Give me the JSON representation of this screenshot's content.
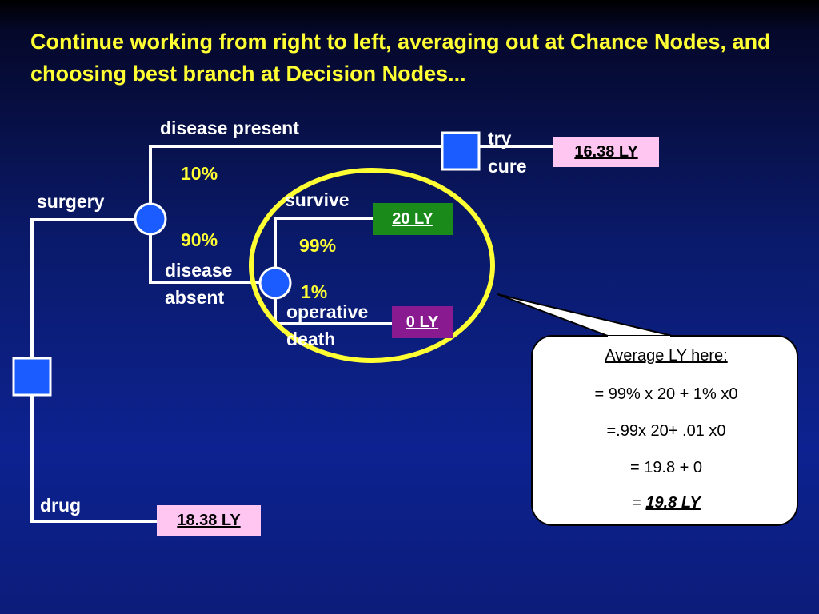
{
  "title": "Continue working from right to left, averaging out at Chance Nodes, and choosing best branch at Decision Nodes...",
  "labels": {
    "disease_present": "disease present",
    "surgery": "surgery",
    "disease": "disease",
    "absent": "absent",
    "survive": "survive",
    "operative": "operative",
    "death": "death",
    "try": "try",
    "cure": "cure",
    "drug": "drug"
  },
  "probabilities": {
    "disease_present": "10%",
    "disease_absent": "90%",
    "survive": "99%",
    "operative_death": "1%"
  },
  "outcomes": {
    "try_cure": "16.38 LY",
    "survive": "20 LY",
    "operative_death": "0 LY",
    "drug": "18.38 LY"
  },
  "callout": {
    "heading": "Average LY here:",
    "line1": "= 99% x 20  +  1% x0",
    "line2": "=.99x 20+ .01 x0",
    "line3": "= 19.8 + 0",
    "result_prefix": "= ",
    "result": "19.8 LY"
  },
  "colors": {
    "title": "#ffff33",
    "node_fill": "#1a5cff",
    "lines": "#ffffff",
    "highlight_ellipse": "#ffff33",
    "outcome_pink": "#ffc6f2",
    "outcome_green": "#1a8a1a",
    "outcome_purple": "#8a1a90"
  }
}
